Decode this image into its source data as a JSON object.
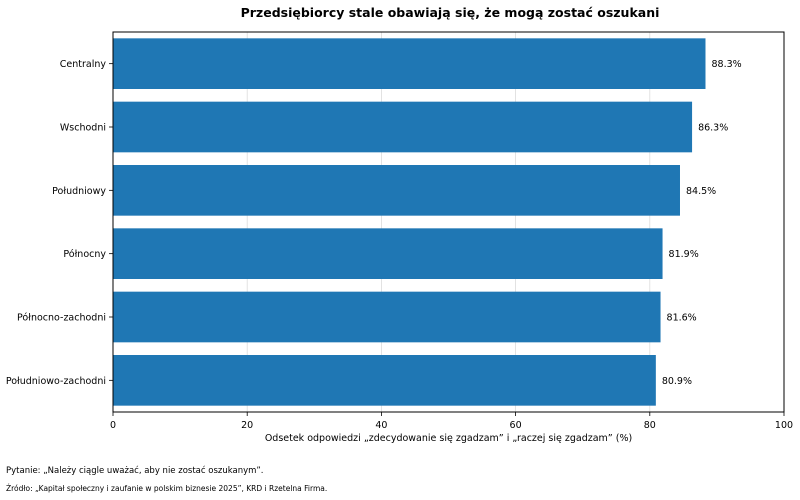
{
  "chart_data": {
    "type": "bar",
    "orientation": "horizontal",
    "title": "Przedsiębiorcy stale obawiają się, że mogą zostać oszukani",
    "xlabel": "Odsetek odpowiedzi „zdecydowanie się zgadzam” i „raczej się zgadzam” (%)",
    "ylabel": "",
    "xlim": [
      0,
      100
    ],
    "xticks": [
      0,
      20,
      40,
      60,
      80,
      100
    ],
    "grid": "vertical",
    "categories": [
      "Centralny",
      "Wschodni",
      "Południowy",
      "Północny",
      "Północno-zachodni",
      "Południowo-zachodni"
    ],
    "values": [
      88.3,
      86.3,
      84.5,
      81.9,
      81.6,
      80.9
    ],
    "value_labels": [
      "88.3%",
      "86.3%",
      "84.5%",
      "81.9%",
      "81.6%",
      "80.9%"
    ],
    "bar_color": "#1f77b4"
  },
  "footnotes": {
    "question": "Pytanie: „Należy ciągle uważać, aby nie zostać oszukanym”.",
    "source": "Źródło: „Kapitał społeczny i zaufanie w polskim biznesie 2025”, KRD i Rzetelna Firma."
  }
}
